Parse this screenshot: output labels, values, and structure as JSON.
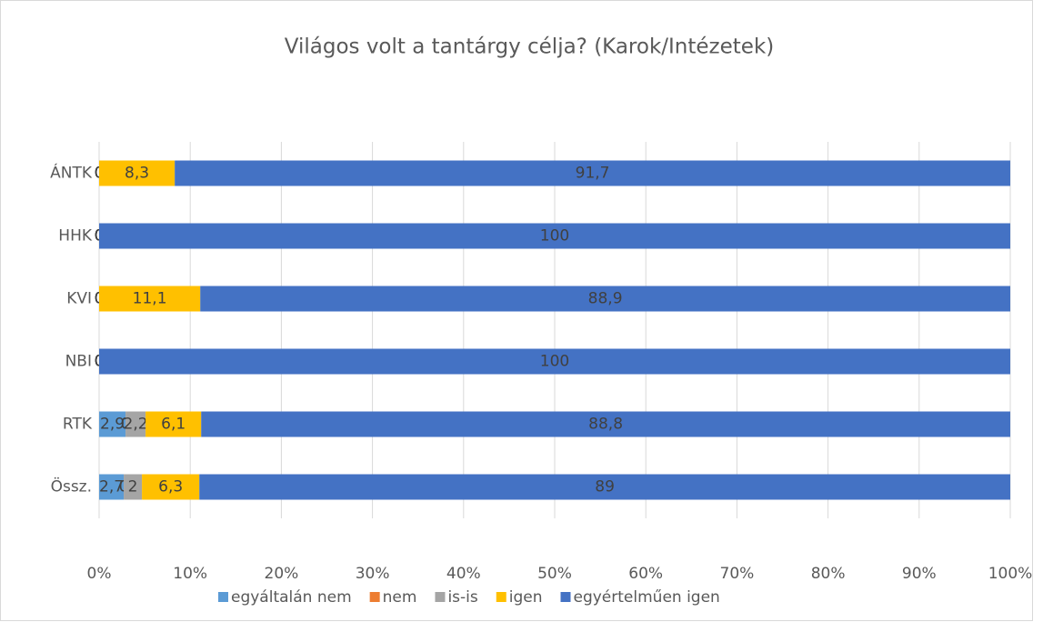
{
  "chart_data": {
    "type": "stacked_bar_horizontal_percent",
    "title": "Világos volt a tantárgy célja? (Karok/Intézetek)",
    "categories": [
      "ÁNTK",
      "HHK",
      "KVI",
      "NBI",
      "RTK",
      "Össz."
    ],
    "series": [
      {
        "name": "egyáltalán nem",
        "color": "#5b9bd5",
        "values": [
          0,
          0,
          0,
          0,
          2.9,
          2.7
        ],
        "value_labels": [
          "0",
          "0",
          "0",
          "0",
          "2,9",
          "2,7"
        ]
      },
      {
        "name": "nem",
        "color": "#ed7d31",
        "values": [
          0,
          0,
          0,
          0,
          0,
          0
        ],
        "value_labels": [
          "0",
          "0",
          "0",
          "0",
          "0",
          "0"
        ]
      },
      {
        "name": "is-is",
        "color": "#a5a5a5",
        "values": [
          0,
          0,
          0,
          0,
          2.2,
          2
        ],
        "value_labels": [
          "0",
          "0",
          "0",
          "0",
          "2,2",
          "2"
        ]
      },
      {
        "name": "igen",
        "color": "#ffc000",
        "values": [
          8.3,
          0,
          11.1,
          0,
          6.1,
          6.3
        ],
        "value_labels": [
          "8,3",
          "0",
          "11,1",
          "0",
          "6,1",
          "6,3"
        ]
      },
      {
        "name": "egyértelműen igen",
        "color": "#4472c4",
        "values": [
          91.7,
          100,
          88.9,
          100,
          88.8,
          89
        ],
        "value_labels": [
          "91,7",
          "100",
          "88,9",
          "100",
          "88,8",
          "89"
        ]
      }
    ],
    "xlim": [
      0,
      100
    ],
    "xticks": [
      {
        "value": 0,
        "label": "0%"
      },
      {
        "value": 10,
        "label": "10%"
      },
      {
        "value": 20,
        "label": "20%"
      },
      {
        "value": 30,
        "label": "30%"
      },
      {
        "value": 40,
        "label": "40%"
      },
      {
        "value": 50,
        "label": "50%"
      },
      {
        "value": 60,
        "label": "60%"
      },
      {
        "value": 70,
        "label": "70%"
      },
      {
        "value": 80,
        "label": "80%"
      },
      {
        "value": 90,
        "label": "90%"
      },
      {
        "value": 100,
        "label": "100%"
      }
    ],
    "grid": true,
    "legend": "bottom"
  }
}
